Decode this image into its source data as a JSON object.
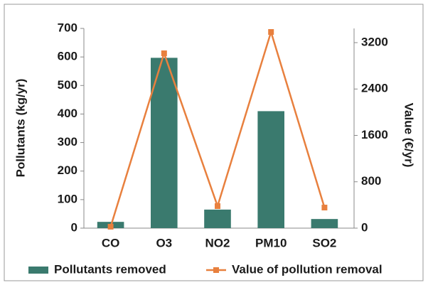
{
  "chart_data": {
    "type": "bar",
    "categories": [
      "CO",
      "O3",
      "NO2",
      "PM10",
      "SO2"
    ],
    "series": [
      {
        "name": "Pollutants removed",
        "color": "#3a7a6e",
        "type": "bar",
        "values": [
          22,
          597,
          65,
          410,
          32
        ]
      },
      {
        "name": "Value of pollution removal",
        "color": "#e8803e",
        "type": "line",
        "axis": "y2",
        "values": [
          25,
          3016,
          380,
          3384,
          355
        ]
      }
    ],
    "ylabel": "Pollutants (kg/yr)",
    "y2label": "Value (€/yr)",
    "ylim": [
      0,
      700
    ],
    "yticks": [
      0,
      100,
      200,
      300,
      400,
      500,
      600,
      700
    ],
    "y2lim": [
      0,
      3445
    ],
    "y2ticks": [
      0,
      800,
      1600,
      2400,
      3200
    ]
  }
}
